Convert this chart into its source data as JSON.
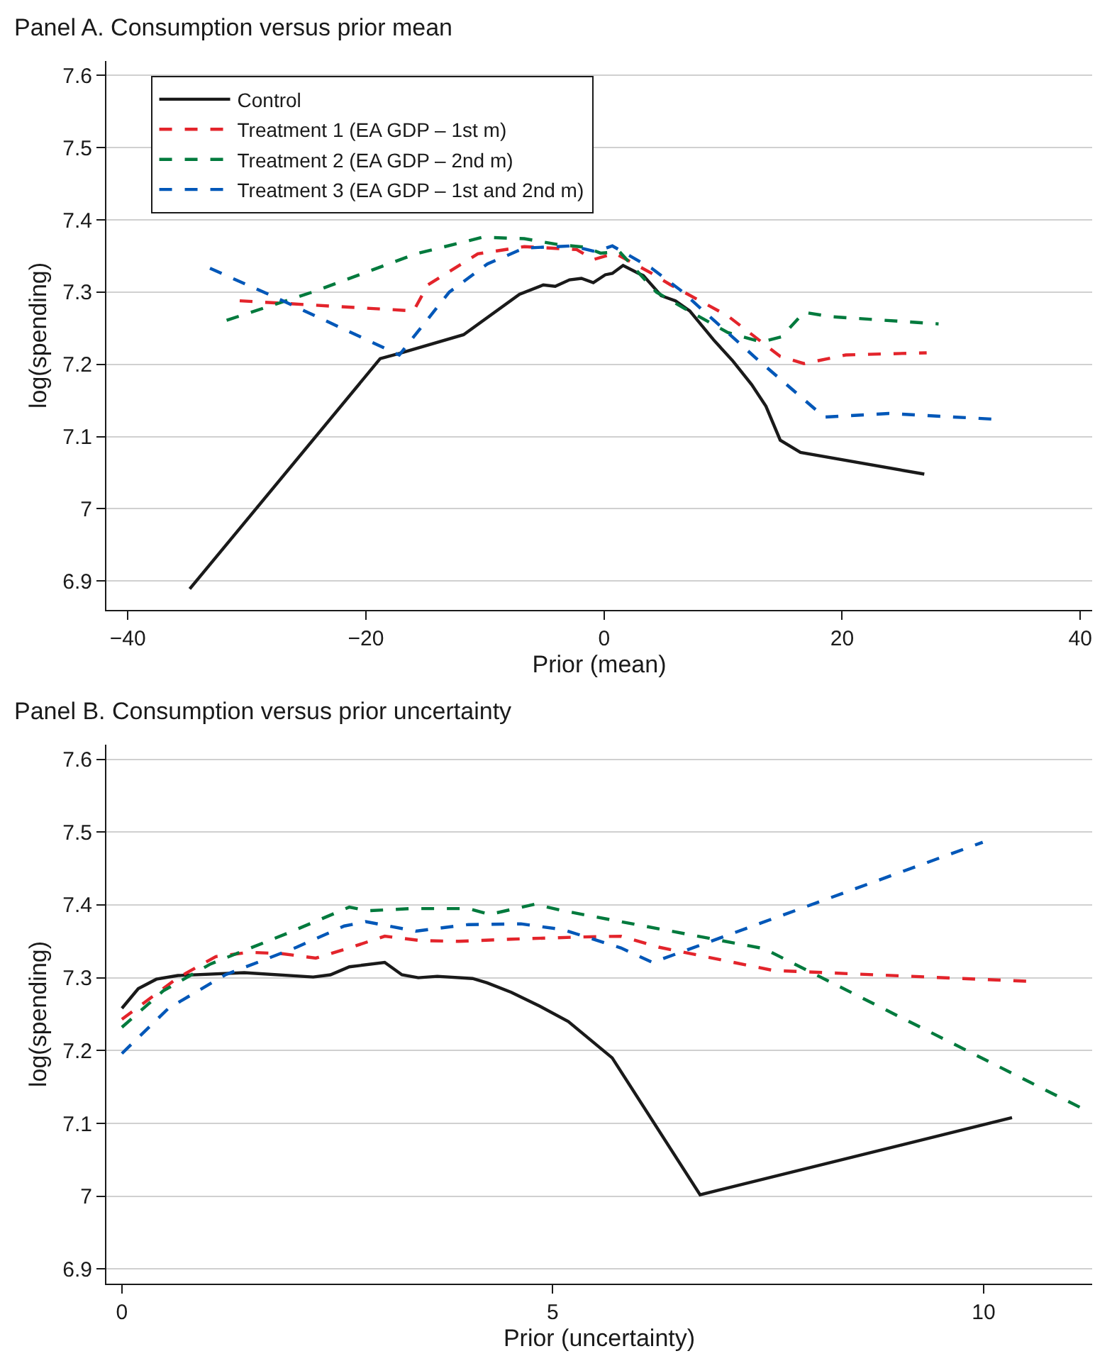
{
  "chart_data": [
    {
      "type": "line",
      "title": "Panel A. Consumption versus prior mean",
      "xlabel": "Prior (mean)",
      "ylabel": "log(spending)",
      "xlim": [
        -41.8,
        41
      ],
      "ylim": [
        6.86,
        7.62
      ],
      "xticks": [
        {
          "value": -40,
          "label": "−40"
        },
        {
          "value": -20,
          "label": "−20"
        },
        0,
        20,
        40
      ],
      "yticks": [
        6.9,
        7,
        7.1,
        7.2,
        7.3,
        7.4,
        7.5,
        7.6
      ],
      "grid": "y",
      "legend": "top left",
      "series": [
        {
          "name": "Control",
          "color": "#1a1a1a",
          "line_style": "solid",
          "x": [
            -34.8,
            -18.8,
            -17.2,
            -11.8,
            -7.1,
            -5.1,
            -4.1,
            -2.9,
            -1.9,
            -0.9,
            0.1,
            0.7,
            1.6,
            2.9,
            3.3,
            4.8,
            6.0,
            7.2,
            9.2,
            10.8,
            12.4,
            13.6,
            14.8,
            16.5,
            26.9
          ],
          "values": [
            6.889,
            7.208,
            7.215,
            7.241,
            7.297,
            7.31,
            7.308,
            7.317,
            7.319,
            7.313,
            7.324,
            7.326,
            7.337,
            7.326,
            7.323,
            7.295,
            7.288,
            7.274,
            7.234,
            7.205,
            7.172,
            7.142,
            7.095,
            7.078,
            7.048
          ]
        },
        {
          "name": "Treatment 1 (EA GDP – 1st m)",
          "color": "#e3242b",
          "line_style": "dashed",
          "x": [
            -30.6,
            -16.0,
            -14.8,
            -10.6,
            -6.7,
            -2.3,
            -0.9,
            0.9,
            4.0,
            5.6,
            10.4,
            14.8,
            16.8,
            20.3,
            27.1
          ],
          "values": [
            7.288,
            7.274,
            7.31,
            7.353,
            7.363,
            7.359,
            7.345,
            7.354,
            7.326,
            7.31,
            7.267,
            7.211,
            7.201,
            7.213,
            7.216
          ]
        },
        {
          "name": "Treatment 2 (EA GDP – 2nd m)",
          "color": "#007a3d",
          "line_style": "dashed",
          "x": [
            -31.7,
            -24.5,
            -15.8,
            -10.2,
            -6.7,
            -3.9,
            -1.5,
            -0.3,
            1.3,
            4.0,
            4.4,
            6.8,
            10.4,
            13.2,
            14.9,
            16.8,
            19.1,
            28.1
          ],
          "values": [
            7.261,
            7.3,
            7.353,
            7.376,
            7.374,
            7.366,
            7.362,
            7.354,
            7.356,
            7.307,
            7.3,
            7.277,
            7.244,
            7.231,
            7.238,
            7.272,
            7.266,
            7.256
          ]
        },
        {
          "name": "Treatment 3 (EA GDP – 1st and 2nd m)",
          "color": "#0057b8",
          "line_style": "dashed",
          "x": [
            -33.1,
            -27.5,
            -17.2,
            -13.0,
            -9.8,
            -6.7,
            -2.7,
            -0.7,
            0.7,
            4.0,
            6.4,
            12.8,
            18.5,
            23.9,
            32.8
          ],
          "values": [
            7.333,
            7.292,
            7.213,
            7.3,
            7.339,
            7.361,
            7.364,
            7.356,
            7.364,
            7.333,
            7.303,
            7.208,
            7.127,
            7.132,
            7.124
          ]
        }
      ]
    },
    {
      "type": "line",
      "title": "Panel B. Consumption versus prior uncertainty",
      "xlabel": "Prior (uncertainty)",
      "ylabel": "log(spending)",
      "xlim": [
        -0.18,
        11.26
      ],
      "ylim": [
        6.88,
        7.62
      ],
      "xticks": [
        0,
        5,
        10
      ],
      "yticks": [
        6.9,
        7,
        7.1,
        7.2,
        7.3,
        7.4,
        7.5,
        7.6
      ],
      "grid": "y",
      "series": [
        {
          "color": "#1a1a1a",
          "line_style": "solid",
          "x": [
            0,
            0.19,
            0.4,
            0.65,
            1.42,
            2.22,
            2.42,
            2.64,
            3.05,
            3.25,
            3.44,
            3.66,
            4.07,
            4.24,
            4.52,
            4.85,
            5.18,
            5.69,
            6.71,
            10.33
          ],
          "values": [
            7.258,
            7.285,
            7.298,
            7.303,
            7.307,
            7.301,
            7.304,
            7.315,
            7.321,
            7.304,
            7.3,
            7.302,
            7.299,
            7.293,
            7.28,
            7.261,
            7.24,
            7.19,
            7.002,
            7.108
          ]
        },
        {
          "color": "#e3242b",
          "line_style": "dashed",
          "x": [
            0,
            0.65,
            1.09,
            1.48,
            1.86,
            2.25,
            2.64,
            3.05,
            3.47,
            3.91,
            4.52,
            5.35,
            5.79,
            6.23,
            7.56,
            10.54
          ],
          "values": [
            7.243,
            7.3,
            7.329,
            7.335,
            7.333,
            7.327,
            7.341,
            7.357,
            7.351,
            7.35,
            7.353,
            7.356,
            7.357,
            7.342,
            7.31,
            7.295
          ]
        },
        {
          "color": "#007a3d",
          "line_style": "dashed",
          "x": [
            0,
            0.48,
            1.03,
            1.92,
            2.64,
            2.86,
            3.36,
            4.02,
            4.27,
            4.79,
            5.12,
            5.79,
            7.45,
            11.12
          ],
          "values": [
            7.232,
            7.282,
            7.319,
            7.361,
            7.397,
            7.392,
            7.395,
            7.395,
            7.387,
            7.401,
            7.392,
            7.377,
            7.34,
            7.122
          ]
        },
        {
          "color": "#0057b8",
          "line_style": "dashed",
          "x": [
            0,
            0.54,
            1.2,
            2.03,
            2.58,
            2.83,
            3.41,
            4.02,
            4.63,
            5.12,
            5.79,
            6.16,
            6.95,
            9.99
          ],
          "values": [
            7.196,
            7.258,
            7.304,
            7.342,
            7.371,
            7.377,
            7.364,
            7.373,
            7.374,
            7.366,
            7.341,
            7.321,
            7.355,
            7.486
          ]
        }
      ]
    }
  ]
}
